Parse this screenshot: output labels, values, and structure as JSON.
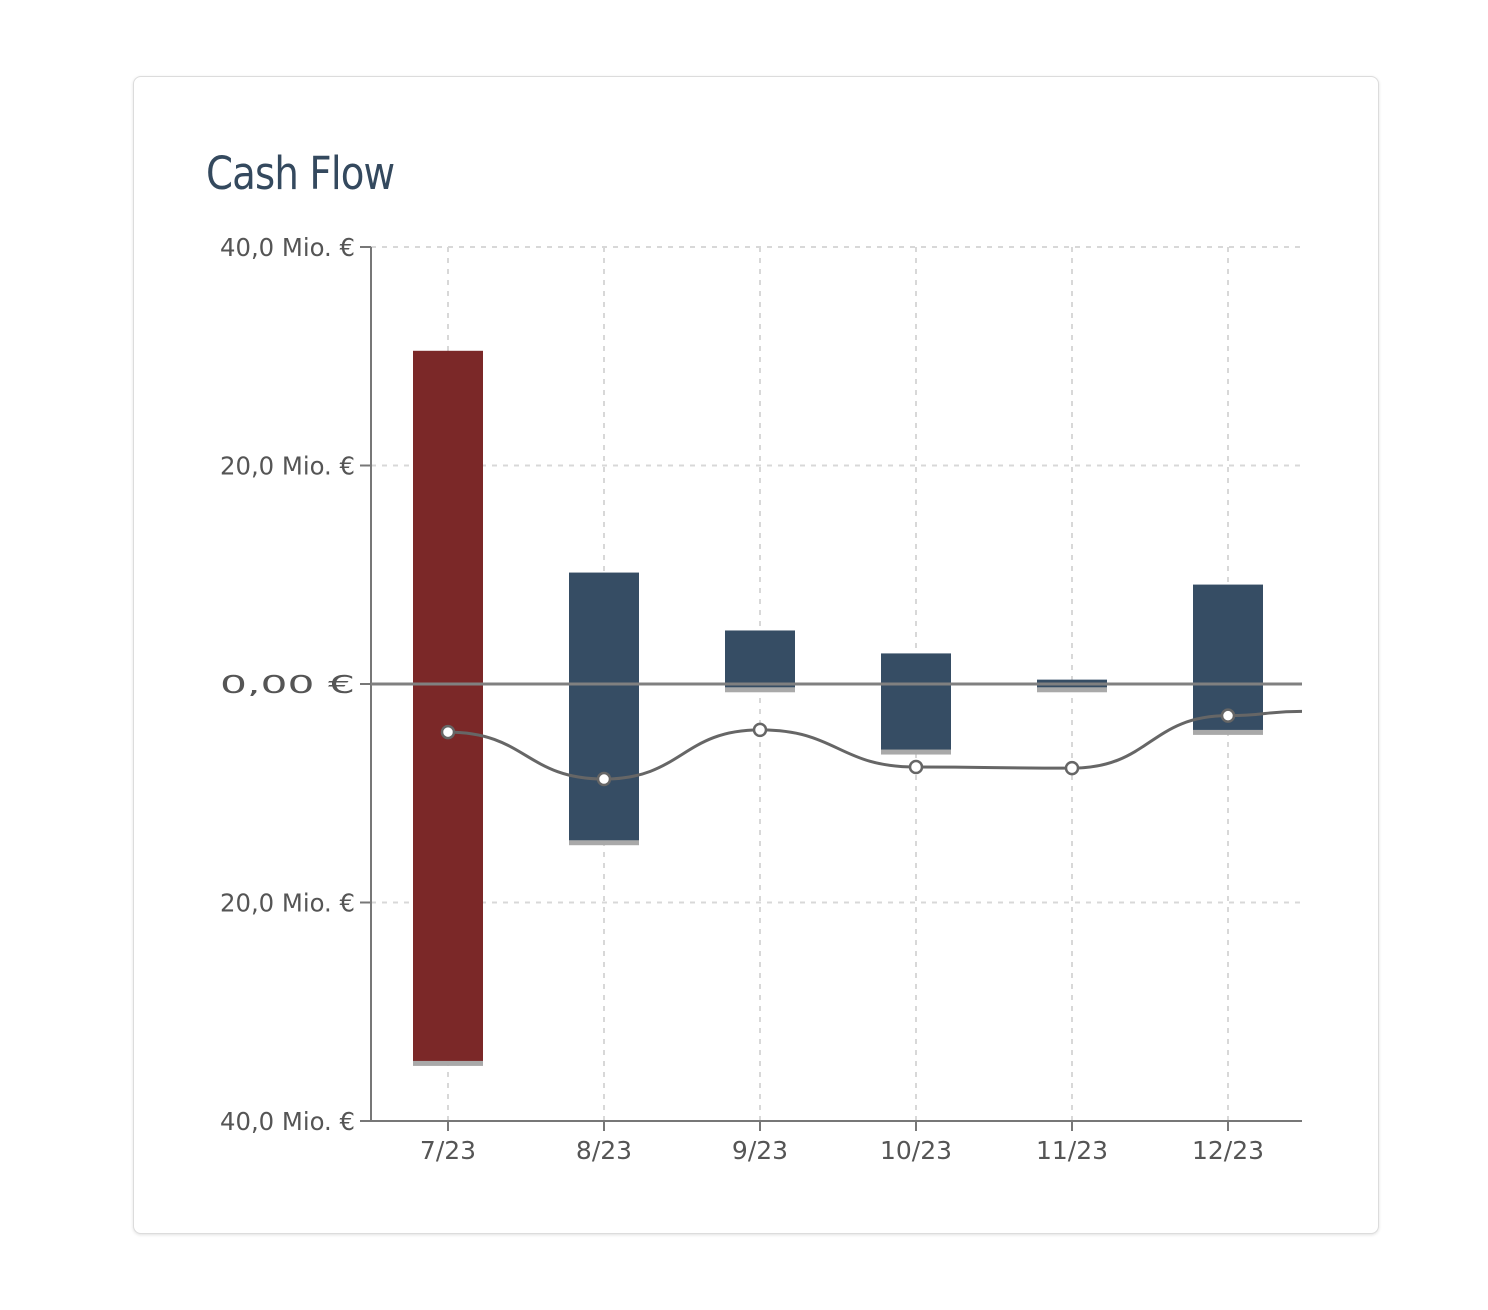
{
  "card": {
    "title": "Cash Flow"
  },
  "colors": {
    "inflow_negative_bar": "#7b2828",
    "bar": "#364d64",
    "line": "#666666",
    "grid": "#d8d8d8",
    "axis": "#777777"
  },
  "chart_data": {
    "type": "bar",
    "title": "Cash Flow",
    "categories": [
      "7/23",
      "8/23",
      "9/23",
      "10/23",
      "11/23",
      "12/23"
    ],
    "y_tick_labels": [
      "40,0 Mio. €",
      "20,0 Mio. €",
      "0,00 €",
      "20,0 Mio. €",
      "40,0 Mio. €"
    ],
    "y_ticks": [
      40,
      20,
      0,
      -20,
      -40
    ],
    "ylim": [
      -40,
      40
    ],
    "unit": "Mio. €",
    "grid": true,
    "series": [
      {
        "kind": "floating-bar",
        "ranges": [
          {
            "category": "7/23",
            "top": 30.5,
            "bottom": -34.5,
            "color": "#7b2828"
          },
          {
            "category": "8/23",
            "top": 10.2,
            "bottom": -14.3,
            "color": "#364d64"
          },
          {
            "category": "9/23",
            "top": 4.9,
            "bottom": -0.3,
            "color": "#364d64"
          },
          {
            "category": "10/23",
            "top": 2.8,
            "bottom": -6.0,
            "color": "#364d64"
          },
          {
            "category": "11/23",
            "top": 0.4,
            "bottom": -0.3,
            "color": "#364d64"
          },
          {
            "category": "12/23",
            "top": 9.1,
            "bottom": -4.2,
            "color": "#364d64"
          }
        ]
      },
      {
        "kind": "line",
        "values": [
          -4.4,
          -8.7,
          -4.2,
          -7.6,
          -7.7,
          -2.9
        ],
        "trailing_value": -2.5
      }
    ]
  }
}
